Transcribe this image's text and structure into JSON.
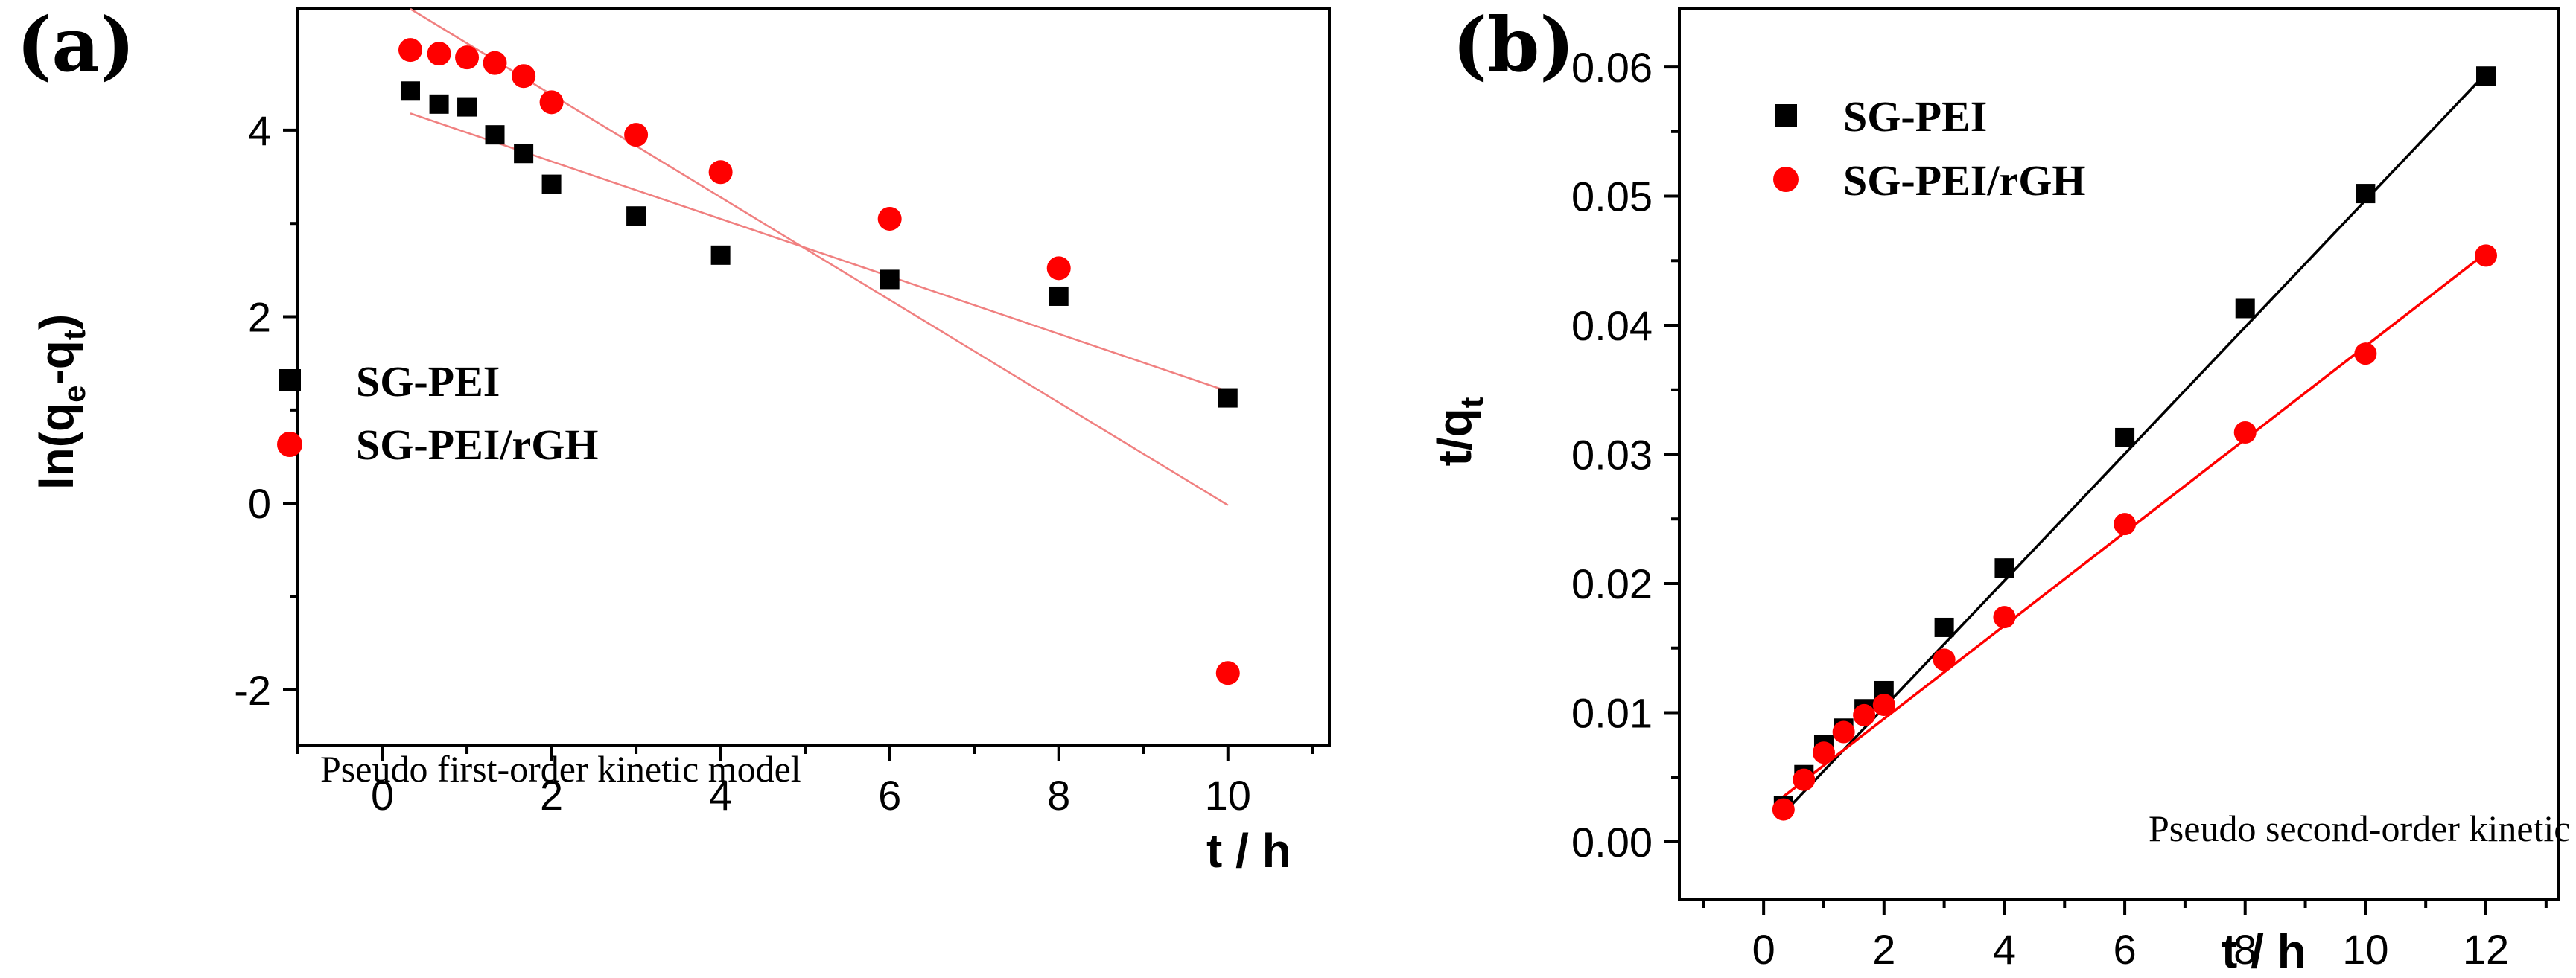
{
  "chart_data": [
    {
      "panel_label": "(a)",
      "type": "scatter",
      "title": "",
      "xlabel": "t / h",
      "ylabel_parts": [
        "ln(q",
        "e",
        "-q",
        "t",
        ")"
      ],
      "xlim": [
        -1,
        11.2
      ],
      "ylim": [
        -2.6,
        5.3
      ],
      "x_ticks": [
        0,
        2,
        4,
        6,
        8,
        10
      ],
      "x_tick_labels": [
        "0",
        "2",
        "4",
        "6",
        "8",
        "10"
      ],
      "y_ticks": [
        -2,
        0,
        2,
        4
      ],
      "y_tick_labels": [
        "-2",
        "0",
        "2",
        "4"
      ],
      "annotation": "Pseudo first-order kinetic model",
      "legend": [
        "SG-PEI",
        "SG-PEI/rGH"
      ],
      "series": [
        {
          "name": "SG-PEI",
          "marker": "square",
          "color": "#000000",
          "x": [
            0.33,
            0.67,
            1,
            1.33,
            1.67,
            2,
            3,
            4,
            6,
            8,
            10
          ],
          "y": [
            4.42,
            4.28,
            4.25,
            3.95,
            3.75,
            3.42,
            3.08,
            2.66,
            2.4,
            2.22,
            1.13
          ]
        },
        {
          "name": "SG-PEI/rGH",
          "marker": "circle",
          "color": "#ff0000",
          "x": [
            0.33,
            0.67,
            1,
            1.33,
            1.67,
            2,
            3,
            4,
            6,
            8,
            10
          ],
          "y": [
            4.86,
            4.82,
            4.78,
            4.72,
            4.58,
            4.3,
            3.95,
            3.55,
            3.05,
            2.52,
            -1.82
          ]
        }
      ],
      "fit_lines": [
        {
          "name": "SG-PEI fit",
          "color": "#f08080",
          "x": [
            0.33,
            10
          ],
          "y": [
            4.18,
            1.2
          ]
        },
        {
          "name": "SG-PEI/rGH fit",
          "color": "#f08080",
          "x": [
            0.33,
            10
          ],
          "y": [
            5.3,
            -0.02
          ]
        }
      ]
    },
    {
      "panel_label": "(b)",
      "type": "scatter",
      "title": "",
      "xlabel": "t / h",
      "ylabel_parts": [
        "t/q",
        "t"
      ],
      "xlim": [
        -1.4,
        13.2
      ],
      "ylim": [
        -0.0045,
        0.0645
      ],
      "x_ticks": [
        0,
        2,
        4,
        6,
        8,
        10,
        12
      ],
      "x_tick_labels": [
        "0",
        "2",
        "4",
        "6",
        "8",
        "10",
        "12"
      ],
      "y_ticks": [
        0,
        0.01,
        0.02,
        0.03,
        0.04,
        0.05,
        0.06
      ],
      "y_tick_labels": [
        "0.00",
        "0.01",
        "0.02",
        "0.03",
        "0.04",
        "0.05",
        "0.06"
      ],
      "annotation": "Pseudo second-order kinetic model",
      "legend": [
        "SG-PEI",
        "SG-PEI/rGH"
      ],
      "series": [
        {
          "name": "SG-PEI",
          "marker": "square",
          "color": "#000000",
          "x": [
            0.33,
            0.67,
            1,
            1.33,
            1.67,
            2,
            3,
            4,
            6,
            8,
            10,
            12
          ],
          "y": [
            0.0028,
            0.0052,
            0.0075,
            0.0088,
            0.0103,
            0.0117,
            0.0166,
            0.0212,
            0.0313,
            0.0413,
            0.0502,
            0.0593
          ]
        },
        {
          "name": "SG-PEI/rGH",
          "marker": "circle",
          "color": "#ff0000",
          "x": [
            0.33,
            0.67,
            1,
            1.33,
            1.67,
            2,
            3,
            4,
            6,
            8,
            10,
            12
          ],
          "y": [
            0.0025,
            0.0048,
            0.0069,
            0.0085,
            0.0098,
            0.0106,
            0.0141,
            0.0174,
            0.0246,
            0.0317,
            0.0378,
            0.0454
          ]
        }
      ],
      "fit_lines": [
        {
          "name": "SG-PEI fit",
          "color": "#000000",
          "x": [
            0.33,
            12
          ],
          "y": [
            0.0022,
            0.0595
          ]
        },
        {
          "name": "SG-PEI/rGH fit",
          "color": "#ff0000",
          "x": [
            0.33,
            12
          ],
          "y": [
            0.0035,
            0.0456
          ]
        }
      ]
    }
  ]
}
